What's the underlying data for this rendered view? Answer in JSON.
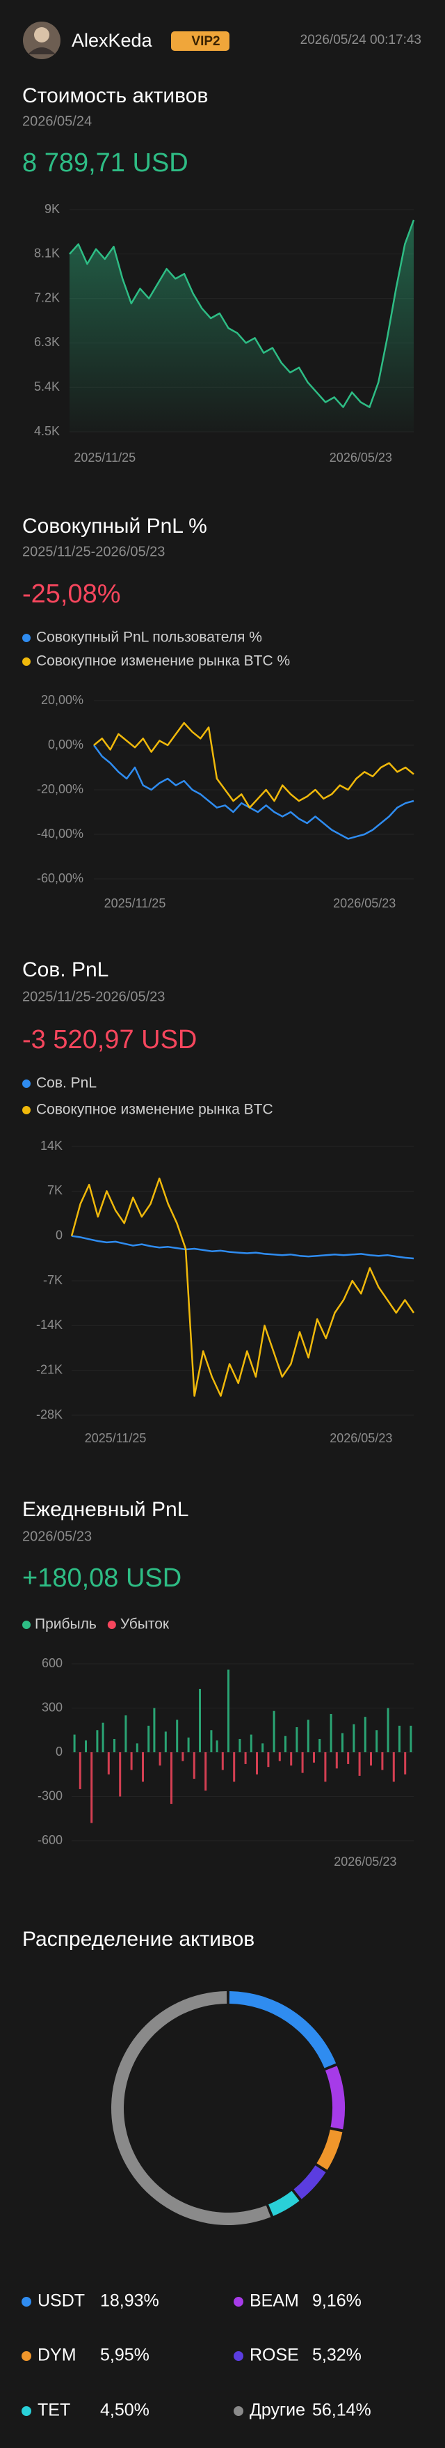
{
  "header": {
    "username": "AlexKeda",
    "badge": "VIP2",
    "timestamp": "2026/05/24 00:17:43"
  },
  "chart_data": [
    {
      "type": "area",
      "title": "Стоимость активов",
      "subtitle": "2026/05/24",
      "headline": "8 789,71 USD",
      "headline_color": "#2ebd85",
      "categories": [
        null,
        null,
        null,
        null,
        "2025/11/25",
        null,
        null,
        null,
        null,
        null,
        null,
        null,
        null,
        null,
        null,
        null,
        null,
        null,
        null,
        null,
        null,
        null,
        null,
        null,
        null,
        null,
        null,
        null,
        null,
        null,
        null,
        null,
        null,
        "2026/05/23",
        null,
        null,
        null,
        null,
        null,
        null
      ],
      "values": [
        8100,
        8300,
        7900,
        8200,
        8000,
        8250,
        7600,
        7100,
        7400,
        7200,
        7500,
        7800,
        7600,
        7700,
        7300,
        7000,
        6800,
        6900,
        6600,
        6500,
        6300,
        6400,
        6100,
        6200,
        5900,
        5700,
        5800,
        5500,
        5300,
        5100,
        5200,
        5000,
        5300,
        5100,
        5000,
        5500,
        6400,
        7400,
        8300,
        8790
      ],
      "color": "#2ebd85",
      "grid": true,
      "ylim": [
        4500,
        9000
      ],
      "yticks": [
        {
          "value": 9000,
          "label": "9K"
        },
        {
          "value": 8100,
          "label": "8.1K"
        },
        {
          "value": 7200,
          "label": "7.2K"
        },
        {
          "value": 6300,
          "label": "6.3K"
        },
        {
          "value": 5400,
          "label": "5.4K"
        },
        {
          "value": 4500,
          "label": "4.5K"
        }
      ]
    },
    {
      "type": "line",
      "title": "Совокупный PnL %",
      "subtitle": "2025/11/25-2026/05/23",
      "headline": "-25,08%",
      "headline_color": "#f6465d",
      "categories": [
        null,
        null,
        null,
        null,
        null,
        "2025/11/25",
        null,
        null,
        null,
        null,
        null,
        null,
        null,
        null,
        null,
        null,
        null,
        null,
        null,
        null,
        null,
        null,
        null,
        null,
        null,
        null,
        null,
        null,
        null,
        null,
        null,
        null,
        null,
        "2026/05/23",
        null,
        null,
        null,
        null,
        null,
        null
      ],
      "series": [
        {
          "name": "Совокупный PnL пользователя %",
          "color": "#2f8cf0",
          "values": [
            0,
            -5,
            -8,
            -12,
            -15,
            -10,
            -18,
            -20,
            -17,
            -15,
            -18,
            -16,
            -20,
            -22,
            -25,
            -28,
            -27,
            -30,
            -26,
            -28,
            -30,
            -27,
            -30,
            -32,
            -30,
            -33,
            -35,
            -32,
            -35,
            -38,
            -40,
            -42,
            -41,
            -40,
            -38,
            -35,
            -32,
            -28,
            -26,
            -25
          ]
        },
        {
          "name": "Совокупное изменение рынка BTC %",
          "color": "#f0b90b",
          "values": [
            0,
            3,
            -2,
            5,
            2,
            -1,
            3,
            -3,
            2,
            0,
            5,
            10,
            6,
            3,
            8,
            -15,
            -20,
            -25,
            -22,
            -28,
            -24,
            -20,
            -25,
            -18,
            -22,
            -25,
            -23,
            -20,
            -24,
            -22,
            -18,
            -20,
            -15,
            -12,
            -14,
            -10,
            -8,
            -12,
            -10,
            -13
          ]
        }
      ],
      "grid": true,
      "ylim": [
        -60,
        20
      ],
      "yticks": [
        {
          "value": 20,
          "label": "20,00%"
        },
        {
          "value": 0,
          "label": "0,00%"
        },
        {
          "value": -20,
          "label": "-20,00%"
        },
        {
          "value": -40,
          "label": "-40,00%"
        },
        {
          "value": -60,
          "label": "-60,00%"
        }
      ]
    },
    {
      "type": "line",
      "title": "Сов. PnL",
      "subtitle": "2025/11/25-2026/05/23",
      "headline": "-3 520,97 USD",
      "headline_color": "#f6465d",
      "categories": [
        null,
        null,
        null,
        null,
        null,
        "2025/11/25",
        null,
        null,
        null,
        null,
        null,
        null,
        null,
        null,
        null,
        null,
        null,
        null,
        null,
        null,
        null,
        null,
        null,
        null,
        null,
        null,
        null,
        null,
        null,
        null,
        null,
        null,
        null,
        "2026/05/23",
        null,
        null,
        null,
        null,
        null,
        null
      ],
      "series": [
        {
          "name": "Сов. PnL",
          "color": "#2f8cf0",
          "values": [
            0,
            -200,
            -500,
            -800,
            -1000,
            -900,
            -1200,
            -1500,
            -1300,
            -1600,
            -1800,
            -1700,
            -1900,
            -2100,
            -2000,
            -2200,
            -2400,
            -2300,
            -2500,
            -2600,
            -2700,
            -2600,
            -2800,
            -2900,
            -3000,
            -2900,
            -3100,
            -3200,
            -3100,
            -3000,
            -2900,
            -3000,
            -2900,
            -2800,
            -3000,
            -3100,
            -3000,
            -3200,
            -3400,
            -3521
          ]
        },
        {
          "name": "Совокупное изменение рынка BTC",
          "color": "#f0b90b",
          "values": [
            0,
            5000,
            8000,
            3000,
            7000,
            4000,
            2000,
            6000,
            3000,
            5000,
            9000,
            5000,
            2000,
            -2000,
            -25000,
            -18000,
            -22000,
            -25000,
            -20000,
            -23000,
            -18000,
            -22000,
            -14000,
            -18000,
            -22000,
            -20000,
            -15000,
            -19000,
            -13000,
            -16000,
            -12000,
            -10000,
            -7000,
            -9000,
            -5000,
            -8000,
            -10000,
            -12000,
            -10000,
            -12000
          ]
        }
      ],
      "grid": true,
      "ylim": [
        -28000,
        14000
      ],
      "yticks": [
        {
          "value": 14000,
          "label": "14K"
        },
        {
          "value": 7000,
          "label": "7K"
        },
        0,
        {
          "value": -7000,
          "label": "-7K"
        },
        {
          "value": -14000,
          "label": "-14K"
        },
        {
          "value": -21000,
          "label": "-21K"
        },
        {
          "value": -28000,
          "label": "-28K"
        }
      ]
    },
    {
      "type": "bar",
      "title": "Ежедневный PnL",
      "subtitle": "2026/05/23",
      "headline": "+180,08 USD",
      "headline_color": "#2ebd85",
      "legend": [
        {
          "name": "Прибыль",
          "color": "#2ebd85"
        },
        {
          "name": "Убыток",
          "color": "#f6465d"
        }
      ],
      "categories": [
        null,
        null,
        null,
        null,
        null,
        null,
        null,
        null,
        null,
        null,
        null,
        null,
        null,
        null,
        null,
        null,
        null,
        null,
        null,
        null,
        null,
        null,
        null,
        null,
        null,
        null,
        null,
        null,
        null,
        null,
        null,
        null,
        null,
        null,
        null,
        null,
        null,
        null,
        null,
        null,
        null,
        null,
        null,
        null,
        null,
        null,
        null,
        null,
        null,
        null,
        null,
        "2026/05/23",
        null,
        null,
        null,
        null,
        null,
        null,
        null,
        null
      ],
      "values": [
        120,
        -250,
        80,
        -480,
        150,
        200,
        -150,
        90,
        -300,
        250,
        -120,
        60,
        -200,
        180,
        300,
        -90,
        140,
        -350,
        220,
        -60,
        100,
        -180,
        430,
        -260,
        150,
        80,
        -120,
        560,
        -200,
        90,
        -80,
        120,
        -150,
        60,
        -100,
        280,
        -60,
        110,
        -90,
        170,
        -140,
        220,
        -70,
        90,
        -200,
        260,
        -110,
        130,
        -80,
        190,
        -160,
        240,
        -90,
        150,
        -120,
        300,
        -200,
        180,
        -150,
        180
      ],
      "grid": true,
      "ylim": [
        -600,
        600
      ],
      "yticks": [
        600,
        300,
        0,
        -300,
        -600
      ]
    },
    {
      "type": "pie",
      "title": "Распределение активов",
      "categories": [
        "USDT",
        "BEAM",
        "DYM",
        "ROSE",
        "TET",
        "Другие"
      ],
      "values": [
        18.93,
        9.16,
        5.95,
        5.32,
        4.5,
        56.14
      ],
      "value_labels": [
        "18,93%",
        "9,16%",
        "5,95%",
        "5,32%",
        "4,50%",
        "56,14%"
      ],
      "colors": [
        "#2f8cf0",
        "#a63be8",
        "#f0962b",
        "#5b3de0",
        "#2ad0d8",
        "#8a8a8a"
      ]
    }
  ]
}
